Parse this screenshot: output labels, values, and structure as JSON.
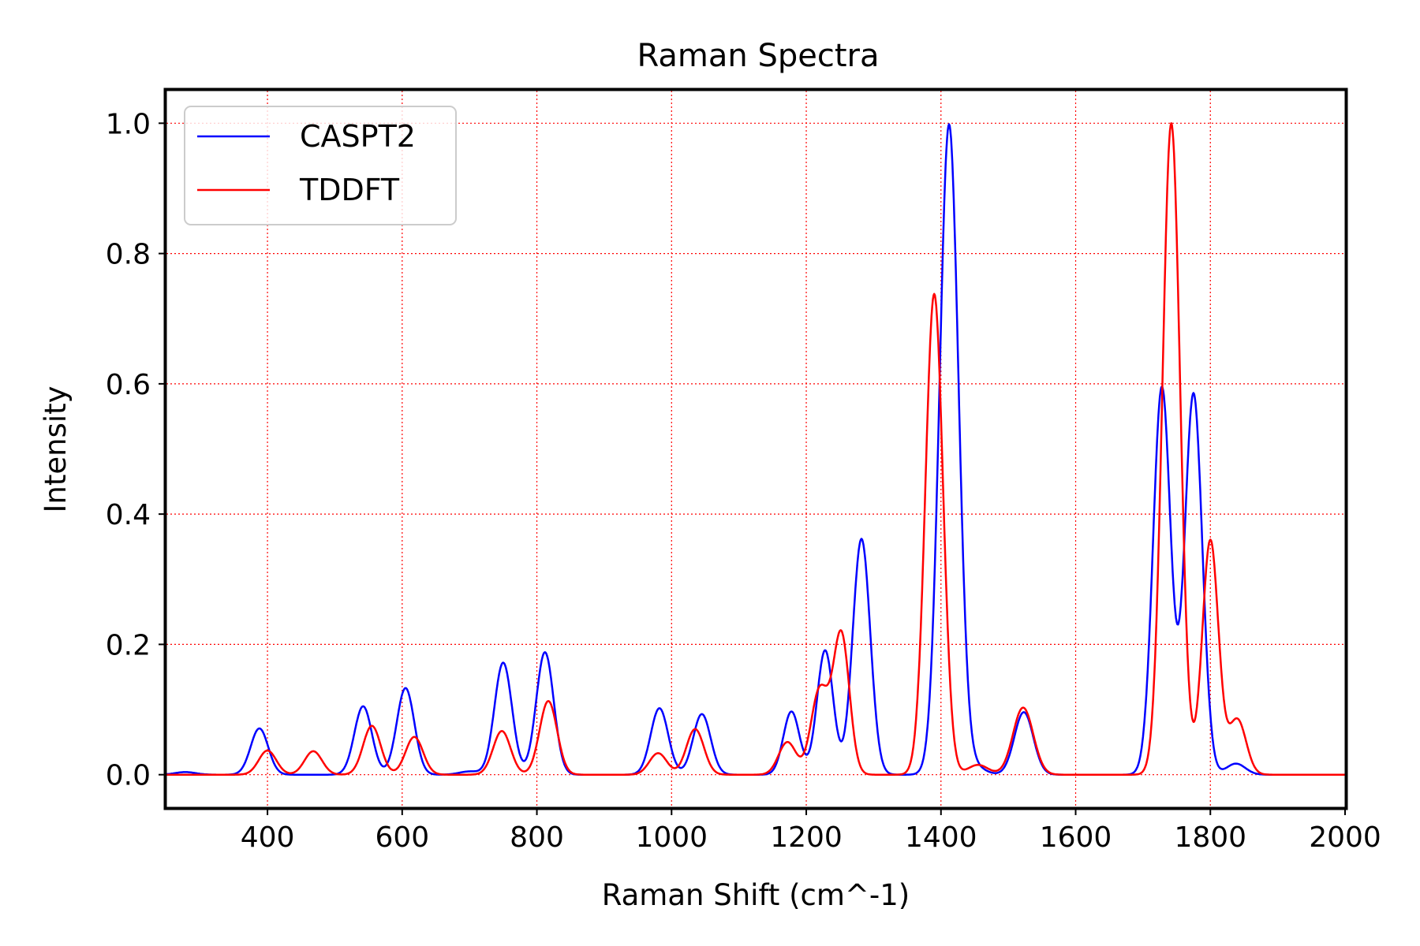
{
  "chart_data": {
    "type": "line",
    "title": "Raman Spectra",
    "xlabel": "Raman Shift (cm^-1)",
    "ylabel": "Intensity",
    "xlim": [
      250,
      2000
    ],
    "ylim": [
      -0.05,
      1.05
    ],
    "xticks": [
      400,
      600,
      800,
      1000,
      1200,
      1400,
      1600,
      1800,
      2000
    ],
    "yticks": [
      0.0,
      0.2,
      0.4,
      0.6,
      0.8,
      1.0
    ],
    "xtick_labels": [
      "400",
      "600",
      "800",
      "1000",
      "1200",
      "1400",
      "1600",
      "1800",
      "2000"
    ],
    "ytick_labels": [
      "0.0",
      "0.2",
      "0.4",
      "0.6",
      "0.8",
      "1.0"
    ],
    "grid": true,
    "grid_color": "#ff0000",
    "legend_position": "upper-left",
    "series": [
      {
        "name": "CASPT2",
        "color": "#0000ff",
        "peaks": [
          {
            "center": 278,
            "height": 0.004,
            "width": 15
          },
          {
            "center": 388,
            "height": 0.071,
            "width": 13
          },
          {
            "center": 542,
            "height": 0.105,
            "width": 13
          },
          {
            "center": 605,
            "height": 0.133,
            "width": 13
          },
          {
            "center": 700,
            "height": 0.005,
            "width": 15
          },
          {
            "center": 750,
            "height": 0.172,
            "width": 13
          },
          {
            "center": 812,
            "height": 0.188,
            "width": 13
          },
          {
            "center": 982,
            "height": 0.102,
            "width": 13
          },
          {
            "center": 1045,
            "height": 0.093,
            "width": 13
          },
          {
            "center": 1178,
            "height": 0.097,
            "width": 12
          },
          {
            "center": 1228,
            "height": 0.191,
            "width": 12
          },
          {
            "center": 1282,
            "height": 0.362,
            "width": 13
          },
          {
            "center": 1412,
            "height": 0.998,
            "width": 14
          },
          {
            "center": 1450,
            "height": 0.012,
            "width": 15
          },
          {
            "center": 1523,
            "height": 0.096,
            "width": 14
          },
          {
            "center": 1728,
            "height": 0.595,
            "width": 13
          },
          {
            "center": 1775,
            "height": 0.585,
            "width": 13
          },
          {
            "center": 1838,
            "height": 0.017,
            "width": 14
          }
        ]
      },
      {
        "name": "TDDFT",
        "color": "#ff0000",
        "peaks": [
          {
            "center": 400,
            "height": 0.037,
            "width": 13
          },
          {
            "center": 468,
            "height": 0.036,
            "width": 13
          },
          {
            "center": 555,
            "height": 0.075,
            "width": 13
          },
          {
            "center": 618,
            "height": 0.058,
            "width": 13
          },
          {
            "center": 748,
            "height": 0.067,
            "width": 13
          },
          {
            "center": 817,
            "height": 0.113,
            "width": 13
          },
          {
            "center": 980,
            "height": 0.033,
            "width": 13
          },
          {
            "center": 1035,
            "height": 0.07,
            "width": 13
          },
          {
            "center": 1172,
            "height": 0.05,
            "width": 13
          },
          {
            "center": 1220,
            "height": 0.13,
            "width": 13
          },
          {
            "center": 1252,
            "height": 0.215,
            "width": 12
          },
          {
            "center": 1390,
            "height": 0.738,
            "width": 13
          },
          {
            "center": 1455,
            "height": 0.015,
            "width": 15
          },
          {
            "center": 1522,
            "height": 0.103,
            "width": 15
          },
          {
            "center": 1742,
            "height": 1.0,
            "width": 13
          },
          {
            "center": 1800,
            "height": 0.36,
            "width": 12
          },
          {
            "center": 1840,
            "height": 0.085,
            "width": 13
          }
        ]
      }
    ]
  }
}
